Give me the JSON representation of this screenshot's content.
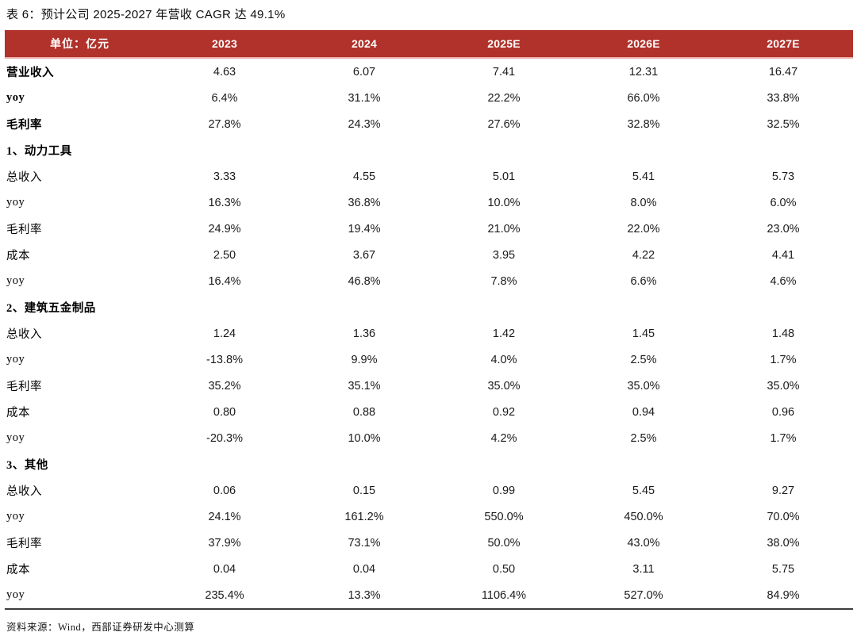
{
  "title": "表 6：预计公司 2025-2027 年营收 CAGR 达 49.1%",
  "source": "资料来源：Wind，西部证券研发中心测算",
  "colors": {
    "header_bg": "#B0322B",
    "header_text": "#FFFFFF",
    "header_underline": "#ECAFA9",
    "table_bottom_rule": "#3D3D3D"
  },
  "chart_data": {
    "type": "table",
    "title": "表 6：预计公司 2025-2027 年营收 CAGR 达 49.1%",
    "columns": [
      "单位：亿元",
      "2023",
      "2024",
      "2025E",
      "2026E",
      "2027E"
    ],
    "rows": [
      {
        "label": "营业收入",
        "style": "bold",
        "values": [
          "4.63",
          "6.07",
          "7.41",
          "12.31",
          "16.47"
        ]
      },
      {
        "label": "yoy",
        "style": "bold",
        "values": [
          "6.4%",
          "31.1%",
          "22.2%",
          "66.0%",
          "33.8%"
        ]
      },
      {
        "label": "毛利率",
        "style": "bold",
        "values": [
          "27.8%",
          "24.3%",
          "27.6%",
          "32.8%",
          "32.5%"
        ]
      },
      {
        "label": "1、动力工具",
        "style": "section",
        "values": [
          "",
          "",
          "",
          "",
          ""
        ]
      },
      {
        "label": "总收入",
        "style": "normal",
        "values": [
          "3.33",
          "4.55",
          "5.01",
          "5.41",
          "5.73"
        ]
      },
      {
        "label": "yoy",
        "style": "normal",
        "values": [
          "16.3%",
          "36.8%",
          "10.0%",
          "8.0%",
          "6.0%"
        ]
      },
      {
        "label": "毛利率",
        "style": "normal",
        "values": [
          "24.9%",
          "19.4%",
          "21.0%",
          "22.0%",
          "23.0%"
        ]
      },
      {
        "label": "成本",
        "style": "normal",
        "values": [
          "2.50",
          "3.67",
          "3.95",
          "4.22",
          "4.41"
        ]
      },
      {
        "label": "yoy",
        "style": "normal",
        "values": [
          "16.4%",
          "46.8%",
          "7.8%",
          "6.6%",
          "4.6%"
        ]
      },
      {
        "label": "2、建筑五金制品",
        "style": "section",
        "values": [
          "",
          "",
          "",
          "",
          ""
        ]
      },
      {
        "label": "总收入",
        "style": "normal",
        "values": [
          "1.24",
          "1.36",
          "1.42",
          "1.45",
          "1.48"
        ]
      },
      {
        "label": "yoy",
        "style": "normal",
        "values": [
          "-13.8%",
          "9.9%",
          "4.0%",
          "2.5%",
          "1.7%"
        ]
      },
      {
        "label": "毛利率",
        "style": "normal",
        "values": [
          "35.2%",
          "35.1%",
          "35.0%",
          "35.0%",
          "35.0%"
        ]
      },
      {
        "label": "成本",
        "style": "normal",
        "values": [
          "0.80",
          "0.88",
          "0.92",
          "0.94",
          "0.96"
        ]
      },
      {
        "label": "yoy",
        "style": "normal",
        "values": [
          "-20.3%",
          "10.0%",
          "4.2%",
          "2.5%",
          "1.7%"
        ]
      },
      {
        "label": "3、其他",
        "style": "section",
        "values": [
          "",
          "",
          "",
          "",
          ""
        ]
      },
      {
        "label": "总收入",
        "style": "normal",
        "values": [
          "0.06",
          "0.15",
          "0.99",
          "5.45",
          "9.27"
        ]
      },
      {
        "label": "yoy",
        "style": "normal",
        "values": [
          "24.1%",
          "161.2%",
          "550.0%",
          "450.0%",
          "70.0%"
        ]
      },
      {
        "label": "毛利率",
        "style": "normal",
        "values": [
          "37.9%",
          "73.1%",
          "50.0%",
          "43.0%",
          "38.0%"
        ]
      },
      {
        "label": "成本",
        "style": "normal",
        "values": [
          "0.04",
          "0.04",
          "0.50",
          "3.11",
          "5.75"
        ]
      },
      {
        "label": "yoy",
        "style": "normal",
        "values": [
          "235.4%",
          "13.3%",
          "1106.4%",
          "527.0%",
          "84.9%"
        ]
      }
    ]
  }
}
